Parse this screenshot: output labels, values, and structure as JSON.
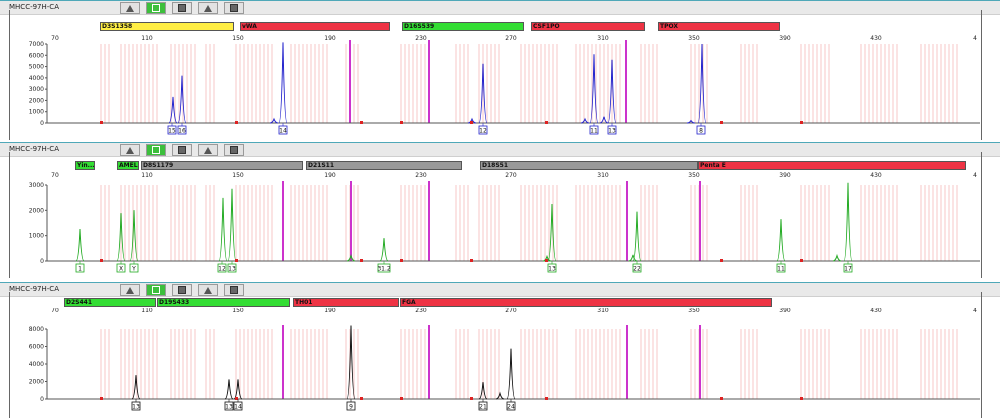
{
  "panels": [
    {
      "sample": "MHCC-97H-CA",
      "color": "#2222cc",
      "ymax": 7000,
      "ylabels": [
        "7000",
        "6000",
        "5000",
        "4000",
        "3000",
        "2000",
        "1000",
        "0"
      ],
      "loci": [
        "D3S1358",
        "vWA",
        "D16S539",
        "CSF1PO",
        "TPOX"
      ],
      "alleles": [
        "15",
        "16",
        "14",
        "12",
        "11",
        "13",
        "8"
      ]
    },
    {
      "sample": "MHCC-97H-CA",
      "color": "#22aa22",
      "ymax": 3000,
      "ylabels": [
        "3000",
        "2000",
        "1000",
        "0"
      ],
      "loci": [
        "Yin...",
        "AMEL",
        "D8S1179",
        "D21S11",
        "D18S51",
        "Penta E"
      ],
      "alleles": [
        "1",
        "X",
        "Y",
        "12",
        "13",
        "31.2",
        "13",
        "22",
        "11",
        "17"
      ]
    },
    {
      "sample": "MHCC-97H-CA",
      "color": "#111111",
      "ymax": 8000,
      "ylabels": [
        "8000",
        "6000",
        "4000",
        "2000",
        "0"
      ],
      "loci": [
        "D2S441",
        "D19S433",
        "TH01",
        "FGA"
      ],
      "alleles": [
        "13",
        "13",
        "14",
        "9",
        "21",
        "24"
      ]
    }
  ],
  "scale_labels": [
    "70",
    "110",
    "150",
    "190",
    "230",
    "270",
    "310",
    "350",
    "390",
    "430",
    "4"
  ],
  "colors": {
    "locus_yellow": "#ffee44",
    "locus_red": "#ee3344",
    "locus_green": "#33dd33",
    "locus_gray": "#999999",
    "marker_magenta": "#cc33cc",
    "bin_pink": "#fbe3e3"
  }
}
